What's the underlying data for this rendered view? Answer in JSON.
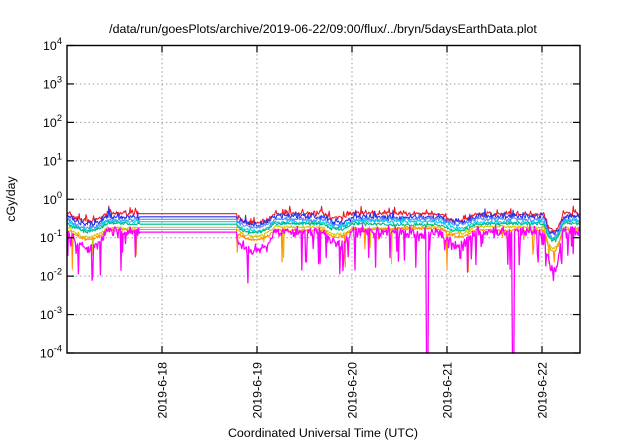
{
  "chart_data": {
    "type": "line",
    "title": "/data/run/goesPlots/archive/2019-06-22/09:00/flux/../bryn/5daysEarthData.plot",
    "xlabel": "Coordinated Universal Time (UTC)",
    "ylabel": "cGy/day",
    "y_scale": "log10",
    "ylim": [
      0.0001,
      10000
    ],
    "y_tick_exponents": [
      4,
      3,
      2,
      1,
      0,
      -1,
      -2,
      -3,
      -4
    ],
    "x_domain_days": [
      0,
      5.4
    ],
    "x_ticks": [
      {
        "day": 1,
        "label": "2019-6-18"
      },
      {
        "day": 2,
        "label": "2019-6-19"
      },
      {
        "day": 3,
        "label": "2019-6-20"
      },
      {
        "day": 4,
        "label": "2019-6-21"
      },
      {
        "day": 5,
        "label": "2019-6-22"
      }
    ],
    "grid": "dotted",
    "legend": "none",
    "series": [
      {
        "name": "red",
        "color": "#f01525",
        "base_cgy_day": 0.42,
        "noise_decades": 0.06,
        "dip_mult": 1.0,
        "spike_up_prob": 0.07,
        "burst_prob": 0.0,
        "dropouts": false
      },
      {
        "name": "blue",
        "color": "#2233ee",
        "base_cgy_day": 0.35,
        "noise_decades": 0.07,
        "dip_mult": 1.0,
        "spike_up_prob": 0.04,
        "burst_prob": 0.0,
        "dropouts": false
      },
      {
        "name": "sky-blue",
        "color": "#5e8bff",
        "base_cgy_day": 0.3,
        "noise_decades": 0.05,
        "dip_mult": 1.0,
        "spike_up_prob": 0.0,
        "burst_prob": 0.0,
        "dropouts": false
      },
      {
        "name": "cyan",
        "color": "#00d4e6",
        "base_cgy_day": 0.26,
        "noise_decades": 0.045,
        "dip_mult": 1.0,
        "spike_up_prob": 0.0,
        "burst_prob": 0.0,
        "dropouts": false
      },
      {
        "name": "sea-green",
        "color": "#00b884",
        "base_cgy_day": 0.225,
        "noise_decades": 0.04,
        "dip_mult": 1.0,
        "spike_up_prob": 0.0,
        "burst_prob": 0.0,
        "dropouts": false
      },
      {
        "name": "yellow",
        "color": "#d2c400",
        "base_cgy_day": 0.185,
        "noise_decades": 0.035,
        "dip_mult": 1.2,
        "spike_up_prob": 0.0,
        "burst_prob": 0.02,
        "dropouts": false
      },
      {
        "name": "orange",
        "color": "#ff9100",
        "base_cgy_day": 0.163,
        "noise_decades": 0.035,
        "dip_mult": 1.2,
        "spike_up_prob": 0.0,
        "burst_prob": 0.02,
        "dropouts": false
      },
      {
        "name": "magenta",
        "color": "#ff00ff",
        "base_cgy_day": 0.14,
        "noise_decades": 0.12,
        "dip_mult": 2.2,
        "spike_up_prob": 0.0,
        "burst_prob": 0.1,
        "dropouts": true
      }
    ],
    "events": {
      "flat_gap_days": [
        0.768,
        1.789
      ],
      "dropouts_to_floor_days": [
        3.789,
        4.694
      ],
      "dropout_floor_value": 0.0001,
      "dips": [
        {
          "t": 0.22,
          "w": 0.2,
          "depth": 0.2
        },
        {
          "t": 1.97,
          "w": 0.22,
          "depth": 0.22
        },
        {
          "t": 2.85,
          "w": 0.15,
          "depth": 0.15
        },
        {
          "t": 4.12,
          "w": 0.18,
          "depth": 0.15
        },
        {
          "t": 5.12,
          "w": 0.1,
          "depth": 0.45
        }
      ]
    },
    "layout_hints": {
      "seed": 20190622,
      "sample_step_days": 0.008,
      "plot_bg": "#ffffff",
      "grid_color": "#9a9a9a",
      "grid_style": "dotted",
      "legend_position": "none"
    }
  }
}
